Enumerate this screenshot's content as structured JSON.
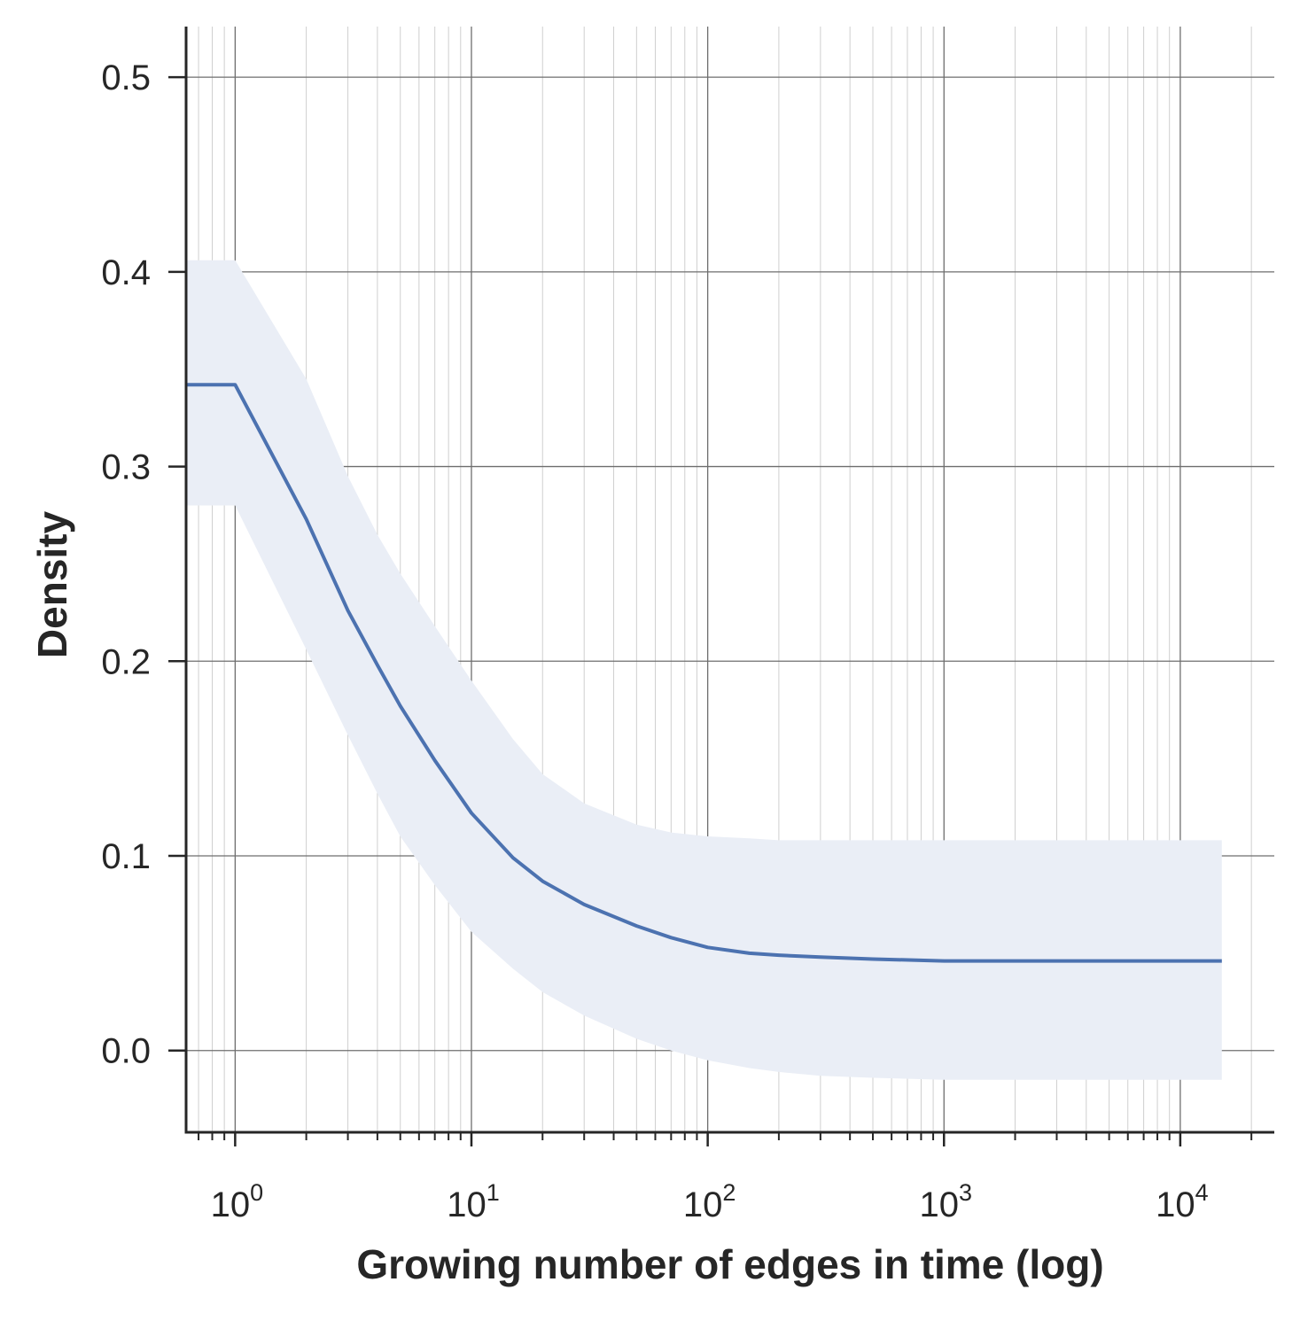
{
  "chart_data": {
    "type": "line",
    "title": "",
    "xlabel": "Growing number of edges in time (log)",
    "ylabel": "Density",
    "x_scale": "log",
    "xlim": [
      0.62,
      25000
    ],
    "ylim": [
      -0.042,
      0.526
    ],
    "grid": true,
    "legend": "none",
    "x_ticks": [
      {
        "base": "10",
        "exp": "0",
        "value": 1
      },
      {
        "base": "10",
        "exp": "1",
        "value": 10
      },
      {
        "base": "10",
        "exp": "2",
        "value": 100
      },
      {
        "base": "10",
        "exp": "3",
        "value": 1000
      },
      {
        "base": "10",
        "exp": "4",
        "value": 10000
      }
    ],
    "y_ticks": [
      {
        "label": "0.0",
        "value": 0.0
      },
      {
        "label": "0.1",
        "value": 0.1
      },
      {
        "label": "0.2",
        "value": 0.2
      },
      {
        "label": "0.3",
        "value": 0.3
      },
      {
        "label": "0.4",
        "value": 0.4
      },
      {
        "label": "0.5",
        "value": 0.5
      }
    ],
    "colors": {
      "line": "#4c72b0",
      "band": "#eaeef6",
      "grid_major": "#6e6e6e",
      "grid_minor": "#cfcfcf",
      "axis": "#262626"
    },
    "series": [
      {
        "x": [
          0.62,
          1,
          2,
          3,
          4,
          5,
          7,
          10,
          15,
          20,
          30,
          50,
          70,
          100,
          150,
          200,
          300,
          500,
          1000,
          2000,
          5000,
          10000,
          15000
        ],
        "y": [
          0.342,
          0.342,
          0.273,
          0.226,
          0.198,
          0.177,
          0.149,
          0.122,
          0.099,
          0.087,
          0.075,
          0.064,
          0.058,
          0.053,
          0.05,
          0.049,
          0.048,
          0.047,
          0.046,
          0.046,
          0.046,
          0.046,
          0.046
        ],
        "lower": [
          0.28,
          0.28,
          0.206,
          0.162,
          0.132,
          0.11,
          0.085,
          0.061,
          0.042,
          0.03,
          0.018,
          0.006,
          0.0,
          -0.005,
          -0.009,
          -0.011,
          -0.013,
          -0.014,
          -0.015,
          -0.015,
          -0.015,
          -0.015,
          -0.015
        ],
        "upper": [
          0.406,
          0.406,
          0.345,
          0.295,
          0.265,
          0.245,
          0.218,
          0.19,
          0.16,
          0.142,
          0.127,
          0.116,
          0.112,
          0.11,
          0.109,
          0.108,
          0.108,
          0.108,
          0.108,
          0.108,
          0.108,
          0.108,
          0.108
        ]
      }
    ]
  }
}
